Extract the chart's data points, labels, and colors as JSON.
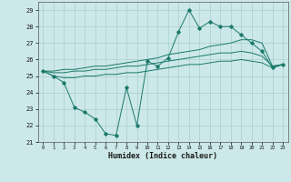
{
  "xlabel": "Humidex (Indice chaleur)",
  "bg_color": "#cce8e8",
  "grid_color": "#aacfcf",
  "line_color": "#1a7a6a",
  "x_hours": [
    0,
    1,
    2,
    3,
    4,
    5,
    6,
    7,
    8,
    9,
    10,
    11,
    12,
    13,
    14,
    15,
    16,
    17,
    18,
    19,
    20,
    21,
    22,
    23
  ],
  "series_main": [
    25.3,
    25.0,
    24.6,
    23.1,
    22.8,
    22.4,
    21.5,
    21.4,
    24.3,
    22.0,
    25.9,
    25.6,
    26.1,
    27.7,
    29.0,
    27.9,
    28.3,
    28.0,
    28.0,
    27.5,
    27.0,
    26.5,
    25.5,
    25.7
  ],
  "series_upper": [
    25.3,
    25.3,
    25.4,
    25.4,
    25.5,
    25.6,
    25.6,
    25.7,
    25.8,
    25.9,
    26.0,
    26.1,
    26.3,
    26.4,
    26.5,
    26.6,
    26.8,
    26.9,
    27.0,
    27.2,
    27.2,
    27.0,
    25.6,
    25.7
  ],
  "series_mid": [
    25.3,
    25.2,
    25.2,
    25.3,
    25.3,
    25.4,
    25.4,
    25.5,
    25.6,
    25.6,
    25.7,
    25.8,
    25.9,
    26.0,
    26.1,
    26.2,
    26.3,
    26.4,
    26.4,
    26.5,
    26.4,
    26.2,
    25.6,
    25.7
  ],
  "series_lower": [
    25.3,
    25.0,
    24.9,
    24.9,
    25.0,
    25.0,
    25.1,
    25.1,
    25.2,
    25.2,
    25.3,
    25.4,
    25.5,
    25.6,
    25.7,
    25.7,
    25.8,
    25.9,
    25.9,
    26.0,
    25.9,
    25.8,
    25.5,
    25.7
  ],
  "ylim": [
    21,
    29.5
  ],
  "yticks": [
    21,
    22,
    23,
    24,
    25,
    26,
    27,
    28,
    29
  ],
  "xlim": [
    -0.5,
    23.5
  ],
  "xticks": [
    0,
    1,
    2,
    3,
    4,
    5,
    6,
    7,
    8,
    9,
    10,
    11,
    12,
    13,
    14,
    15,
    16,
    17,
    18,
    19,
    20,
    21,
    22,
    23
  ]
}
